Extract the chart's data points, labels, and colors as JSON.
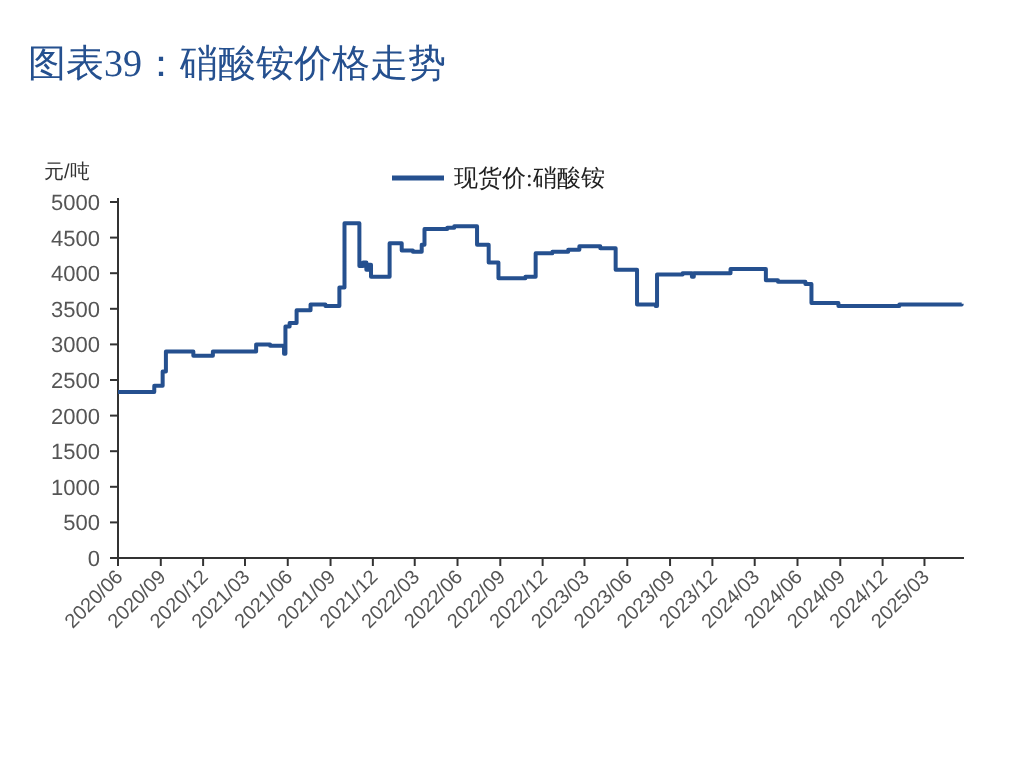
{
  "chart_data": {
    "type": "step",
    "title": "图表39：硝酸铵价格走势",
    "ylabel": "元/吨",
    "legend": "top",
    "grid": false,
    "xlim": [
      "2020-06-01",
      "2025-05-25"
    ],
    "xticks": [
      {
        "value": "2020-06",
        "label": "2020/06"
      },
      {
        "value": "2020-09",
        "label": "2020/09"
      },
      {
        "value": "2020-12",
        "label": "2020/12"
      },
      {
        "value": "2021-03",
        "label": "2021/03"
      },
      {
        "value": "2021-06",
        "label": "2021/06"
      },
      {
        "value": "2021-09",
        "label": "2021/09"
      },
      {
        "value": "2021-12",
        "label": "2021/12"
      },
      {
        "value": "2022-03",
        "label": "2022/03"
      },
      {
        "value": "2022-06",
        "label": "2022/06"
      },
      {
        "value": "2022-09",
        "label": "2022/09"
      },
      {
        "value": "2022-12",
        "label": "2022/12"
      },
      {
        "value": "2023-03",
        "label": "2023/03"
      },
      {
        "value": "2023-06",
        "label": "2023/06"
      },
      {
        "value": "2023-09",
        "label": "2023/09"
      },
      {
        "value": "2023-12",
        "label": "2023/12"
      },
      {
        "value": "2024-03",
        "label": "2024/03"
      },
      {
        "value": "2024-06",
        "label": "2024/06"
      },
      {
        "value": "2024-09",
        "label": "2024/09"
      },
      {
        "value": "2024-12",
        "label": "2024/12"
      },
      {
        "value": "2025-03",
        "label": "2025/03"
      }
    ],
    "ylim": [
      0,
      5000
    ],
    "yticks": [
      0,
      500,
      1000,
      1500,
      2000,
      2500,
      3000,
      3500,
      4000,
      4500,
      5000
    ],
    "x": [
      "2020-06-01",
      "2020-08-18",
      "2020-09-05",
      "2020-09-12",
      "2020-11-10",
      "2020-12-22",
      "2021-03-25",
      "2021-04-24",
      "2021-05-24",
      "2021-05-27",
      "2021-06-05",
      "2021-06-20",
      "2021-07-20",
      "2021-08-21",
      "2021-09-20",
      "2021-10-01",
      "2021-11-02",
      "2021-11-10",
      "2021-11-17",
      "2021-11-22",
      "2021-11-27",
      "2022-01-06",
      "2022-02-01",
      "2022-02-25",
      "2022-03-16",
      "2022-03-22",
      "2022-05-10",
      "2022-05-25",
      "2022-07-13",
      "2022-08-07",
      "2022-08-28",
      "2022-10-25",
      "2022-11-16",
      "2022-12-22",
      "2023-01-25",
      "2023-02-18",
      "2023-04-04",
      "2023-05-07",
      "2023-06-22",
      "2023-08-01",
      "2023-08-04",
      "2023-09-28",
      "2023-10-18",
      "2023-10-22",
      "2024-01-09",
      "2024-03-25",
      "2024-04-20",
      "2024-06-18",
      "2024-07-01",
      "2024-08-28",
      "2025-01-06",
      "2025-05-20"
    ],
    "series": [
      {
        "name": "现货价:硝酸铵",
        "color": "#25508f",
        "values": [
          2330,
          2420,
          2620,
          2900,
          2840,
          2900,
          3000,
          2980,
          2870,
          3250,
          3300,
          3480,
          3560,
          3540,
          3800,
          4700,
          4100,
          4150,
          4050,
          4120,
          3950,
          4420,
          4320,
          4300,
          4400,
          4620,
          4640,
          4660,
          4400,
          4150,
          3930,
          3950,
          4280,
          4300,
          4330,
          4380,
          4350,
          4050,
          3560,
          3540,
          3980,
          4000,
          3950,
          4000,
          4060,
          3900,
          3880,
          3850,
          3580,
          3540,
          3560,
          3570
        ]
      }
    ]
  }
}
